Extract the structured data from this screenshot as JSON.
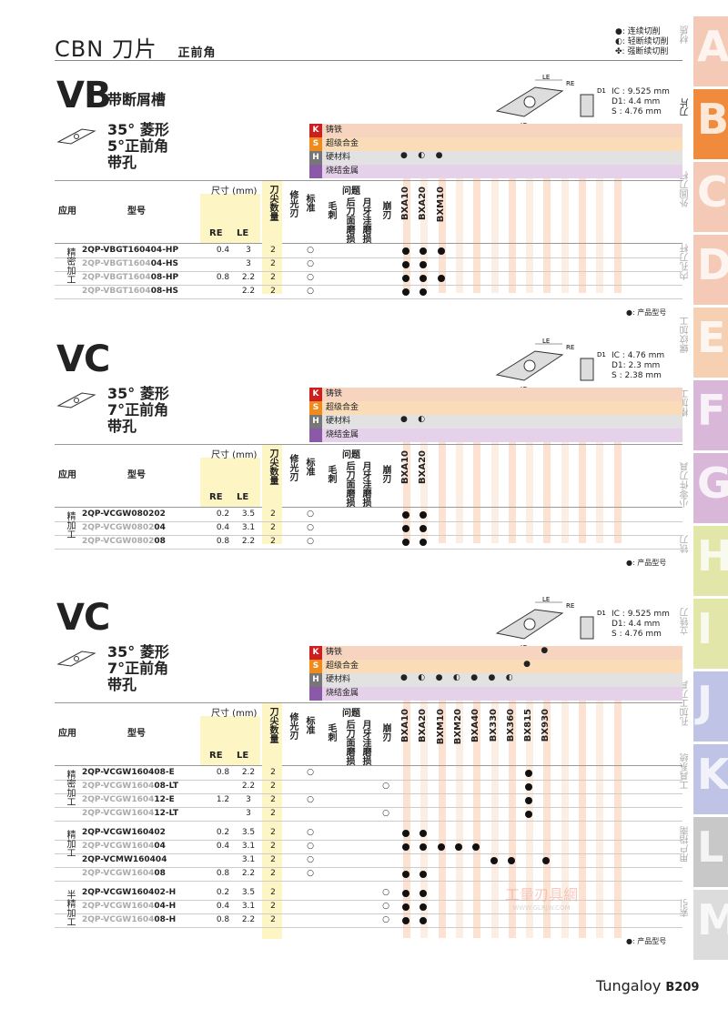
{
  "page": {
    "title": "CBN 刀片",
    "subtitle": "正前角",
    "legend": [
      "●: 连续切削",
      "◐: 轻断续切削",
      "✤: 强断续切削"
    ],
    "note": "●: 产品型号",
    "footer_brand": "Tungaloy",
    "footer_page": "B209",
    "watermark": "工量刃具網",
    "watermark_url": "WWW.GLRJW.COM"
  },
  "tabs": [
    {
      "letter": "A",
      "label": "材质",
      "color": "#f4c9b5"
    },
    {
      "letter": "B",
      "label": "刀片",
      "color": "#f08a3c",
      "active": true
    },
    {
      "letter": "C",
      "label": "外圆刀杆",
      "color": "#f4c9b5"
    },
    {
      "letter": "D",
      "label": "内孔刀杆",
      "color": "#f4c9b5"
    },
    {
      "letter": "E",
      "label": "螺纹加工",
      "color": "#f6d0b2"
    },
    {
      "letter": "F",
      "label": "槽加工",
      "color": "#d9b7d9"
    },
    {
      "letter": "G",
      "label": "小零件刀具",
      "color": "#d9b7d9"
    },
    {
      "letter": "H",
      "label": "铣刀",
      "color": "#e2e6a8"
    },
    {
      "letter": "I",
      "label": "立铣刀",
      "color": "#e2e6a8"
    },
    {
      "letter": "J",
      "label": "孔加工刀具",
      "color": "#bfc4e6"
    },
    {
      "letter": "K",
      "label": "工具系统",
      "color": "#bfc4e6"
    },
    {
      "letter": "L",
      "label": "用户指南",
      "color": "#c8c8c8"
    },
    {
      "letter": "M",
      "label": "索引",
      "color": "#dcdcdc"
    }
  ],
  "categories": {
    "K": {
      "code": "K",
      "name": "铸铁",
      "color": "#cc1f1f",
      "bg": "#f6d4c0"
    },
    "S": {
      "code": "S",
      "name": "超级合金",
      "color": "#f08a1c",
      "bg": "#fbdcb8"
    },
    "H": {
      "code": "H",
      "name": "硬材料",
      "color": "#777777",
      "bg": "#e2e2e2"
    },
    "N": {
      "code": "",
      "name": "烧结金属",
      "color": "#8a5aa8",
      "bg": "#e5d2ea"
    }
  },
  "headers": {
    "application": "应用",
    "model": "型号",
    "size": "尺寸 (mm)",
    "re": "RE",
    "le": "LE",
    "edges": "刀尖数量",
    "wiper": "修光刃",
    "standard": "标准",
    "problem": "问题",
    "burr": "毛刺",
    "flank": "后刀面磨损",
    "crater": "月牙洼磨损",
    "chipping": "崩刃"
  },
  "sections": [
    {
      "code": "VB",
      "subtitle": "带断屑槽",
      "desc": [
        "35° 菱形",
        "5°正前角",
        "带孔"
      ],
      "spec": [
        "IC : 9.525 mm",
        "D1: 4.4 mm",
        "S  : 4.76 mm"
      ],
      "grades": [
        "BXA10",
        "BXA20",
        "BXM10"
      ],
      "h_dots": [
        "●",
        "◐",
        "●"
      ],
      "groups": [
        {
          "label": "精密加工",
          "rows": [
            {
              "prefix": "2QP-VBGT160404-HP",
              "gray": "",
              "suffix": "",
              "re": "0.4",
              "le": "3",
              "n": "2",
              "std": "○",
              "bp": "",
              "dots": [
                1,
                1,
                1
              ]
            },
            {
              "prefix": "",
              "gray": "2QP-VBGT1604",
              "suffix": "04-HS",
              "re": "",
              "le": "3",
              "n": "2",
              "std": "○",
              "bp": "",
              "dots": [
                1,
                1,
                0
              ]
            },
            {
              "prefix": "",
              "gray": "2QP-VBGT1604",
              "suffix": "08-HP",
              "re": "0.8",
              "le": "2.2",
              "n": "2",
              "std": "○",
              "bp": "",
              "dots": [
                1,
                1,
                1
              ]
            },
            {
              "prefix": "",
              "gray": "2QP-VBGT1604",
              "suffix": "08-HS",
              "re": "",
              "le": "2.2",
              "n": "2",
              "std": "○",
              "bp": "",
              "dots": [
                1,
                1,
                0
              ]
            }
          ]
        }
      ]
    },
    {
      "code": "VC",
      "subtitle": "",
      "desc": [
        "35° 菱形",
        "7°正前角",
        "带孔"
      ],
      "spec": [
        "IC : 4.76 mm",
        "D1: 2.3 mm",
        "S  : 2.38 mm"
      ],
      "grades": [
        "BXA10",
        "BXA20"
      ],
      "h_dots": [
        "●",
        "◐"
      ],
      "groups": [
        {
          "label": "精加工",
          "rows": [
            {
              "prefix": "2QP-VCGW080202",
              "gray": "",
              "suffix": "",
              "re": "0.2",
              "le": "3.5",
              "n": "2",
              "std": "○",
              "bp": "",
              "dots": [
                1,
                1
              ]
            },
            {
              "prefix": "",
              "gray": "2QP-VCGW0802",
              "suffix": "04",
              "re": "0.4",
              "le": "3.1",
              "n": "2",
              "std": "○",
              "bp": "",
              "dots": [
                1,
                1
              ]
            },
            {
              "prefix": "",
              "gray": "2QP-VCGW0802",
              "suffix": "08",
              "re": "0.8",
              "le": "2.2",
              "n": "2",
              "std": "○",
              "bp": "",
              "dots": [
                1,
                1
              ]
            }
          ]
        }
      ]
    },
    {
      "code": "VC",
      "subtitle": "",
      "desc": [
        "35° 菱形",
        "7°正前角",
        "带孔"
      ],
      "spec": [
        "IC : 9.525 mm",
        "D1: 4.4 mm",
        "S  : 4.76 mm"
      ],
      "grades": [
        "BXA10",
        "BXA20",
        "BXM10",
        "BXM20",
        "BXA40",
        "BX330",
        "BX360",
        "BX815",
        "BX930"
      ],
      "k_dot": "●",
      "s_dot": "●",
      "h_dots": [
        "●",
        "◐",
        "●",
        "◐",
        "●",
        "●",
        "◐",
        "",
        ""
      ],
      "groups": [
        {
          "label": "精密加工",
          "rows": [
            {
              "prefix": "2QP-VCGW160408-E",
              "gray": "",
              "suffix": "",
              "re": "0.8",
              "le": "2.2",
              "n": "2",
              "std": "○",
              "bp": "",
              "dots": [
                0,
                0,
                0,
                0,
                0,
                0,
                0,
                1,
                0
              ]
            },
            {
              "prefix": "",
              "gray": "2QP-VCGW1604",
              "suffix": "08-LT",
              "re": "",
              "le": "2.2",
              "n": "2",
              "std": "",
              "bp": "○",
              "dots": [
                0,
                0,
                0,
                0,
                0,
                0,
                0,
                1,
                0
              ]
            },
            {
              "prefix": "",
              "gray": "2QP-VCGW1604",
              "suffix": "12-E",
              "re": "1.2",
              "le": "3",
              "n": "2",
              "std": "○",
              "bp": "",
              "dots": [
                0,
                0,
                0,
                0,
                0,
                0,
                0,
                1,
                0
              ]
            },
            {
              "prefix": "",
              "gray": "2QP-VCGW1604",
              "suffix": "12-LT",
              "re": "",
              "le": "3",
              "n": "2",
              "std": "",
              "bp": "○",
              "dots": [
                0,
                0,
                0,
                0,
                0,
                0,
                0,
                1,
                0
              ]
            }
          ]
        },
        {
          "label": "精加工",
          "rows": [
            {
              "prefix": "2QP-VCGW160402",
              "gray": "",
              "suffix": "",
              "re": "0.2",
              "le": "3.5",
              "n": "2",
              "std": "○",
              "bp": "",
              "dots": [
                1,
                1,
                0,
                0,
                0,
                0,
                0,
                0,
                0
              ]
            },
            {
              "prefix": "",
              "gray": "2QP-VCGW1604",
              "suffix": "04",
              "re": "0.4",
              "le": "3.1",
              "n": "2",
              "std": "○",
              "bp": "",
              "dots": [
                1,
                1,
                1,
                1,
                1,
                0,
                0,
                0,
                0
              ]
            },
            {
              "prefix": "2QP-VCMW160404",
              "gray": "",
              "suffix": "",
              "re": "",
              "le": "3.1",
              "n": "2",
              "std": "○",
              "bp": "",
              "dots": [
                0,
                0,
                0,
                0,
                0,
                1,
                1,
                0,
                1
              ]
            },
            {
              "prefix": "",
              "gray": "2QP-VCGW1604",
              "suffix": "08",
              "re": "0.8",
              "le": "2.2",
              "n": "2",
              "std": "○",
              "bp": "",
              "dots": [
                1,
                1,
                0,
                0,
                0,
                0,
                0,
                0,
                0
              ]
            }
          ]
        },
        {
          "label": "半精加工",
          "rows": [
            {
              "prefix": "2QP-VCGW160402-H",
              "gray": "",
              "suffix": "",
              "re": "0.2",
              "le": "3.5",
              "n": "2",
              "std": "",
              "bp": "○",
              "dots": [
                1,
                1,
                0,
                0,
                0,
                0,
                0,
                0,
                0
              ]
            },
            {
              "prefix": "",
              "gray": "2QP-VCGW1604",
              "suffix": "04-H",
              "re": "0.4",
              "le": "3.1",
              "n": "2",
              "std": "",
              "bp": "○",
              "dots": [
                1,
                1,
                0,
                0,
                0,
                0,
                0,
                0,
                0
              ]
            },
            {
              "prefix": "",
              "gray": "2QP-VCGW1604",
              "suffix": "08-H",
              "re": "0.8",
              "le": "2.2",
              "n": "2",
              "std": "",
              "bp": "○",
              "dots": [
                1,
                1,
                0,
                0,
                0,
                0,
                0,
                0,
                0
              ]
            }
          ]
        }
      ]
    }
  ]
}
